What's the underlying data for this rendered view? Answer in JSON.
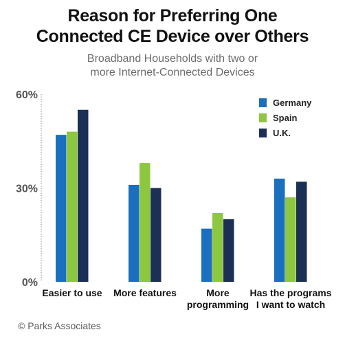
{
  "chart_data": {
    "type": "bar",
    "title": [
      "Reason for Preferring One",
      "Connected CE Device over Others"
    ],
    "subtitle": [
      "Broadband Households with two or",
      "more Internet-Connected Devices"
    ],
    "categories": [
      [
        "Easier to use"
      ],
      [
        "More features"
      ],
      [
        "More",
        "programming"
      ],
      [
        "Has the programs",
        "I want to watch"
      ]
    ],
    "series": [
      {
        "name": "Germany",
        "color": "#1b6fbf",
        "values": [
          47,
          31,
          17,
          33
        ]
      },
      {
        "name": "Spain",
        "color": "#8dc63f",
        "values": [
          48,
          38,
          22,
          27
        ]
      },
      {
        "name": "U.K.",
        "color": "#1c2f55",
        "values": [
          55,
          30,
          20,
          32
        ]
      }
    ],
    "yticks": [
      {
        "value": 0,
        "label": "0%"
      },
      {
        "value": 30,
        "label": "30%"
      },
      {
        "value": 60,
        "label": "60%"
      }
    ],
    "ylim": [
      0,
      60
    ],
    "grid": false,
    "legend_position": "top-right"
  },
  "footer": {
    "credit": "© Parks Associates"
  }
}
